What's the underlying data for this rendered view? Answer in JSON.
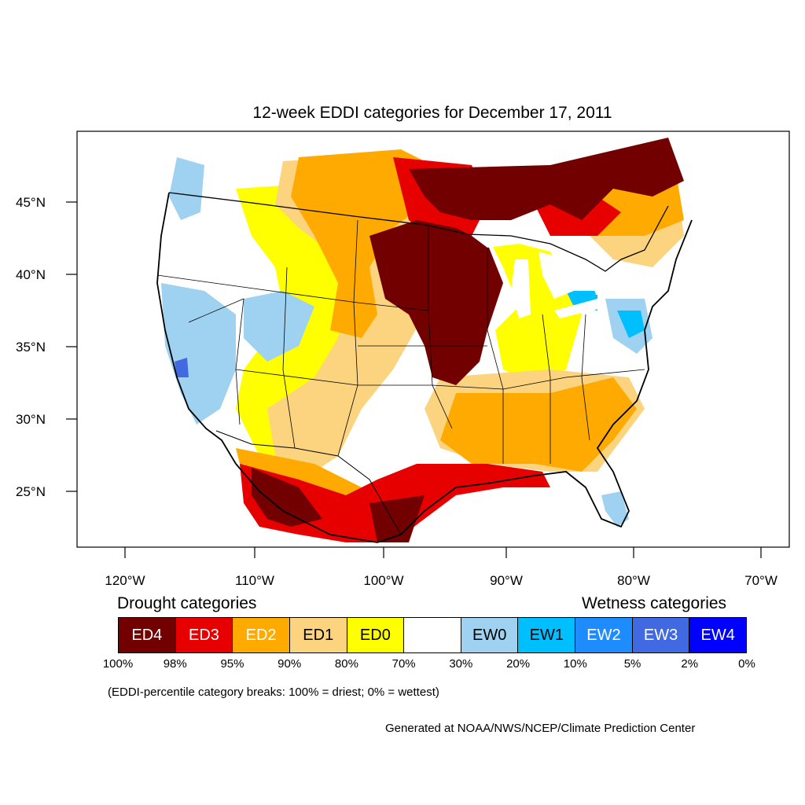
{
  "title": "12-week EDDI categories for December 17, 2011",
  "map": {
    "lat_labels": [
      "45°N",
      "40°N",
      "35°N",
      "30°N",
      "25°N"
    ],
    "lon_labels": [
      "120°W",
      "110°W",
      "100°W",
      "90°W",
      "80°W",
      "70°W"
    ]
  },
  "legend": {
    "drought_heading": "Drought categories",
    "wetness_heading": "Wetness categories",
    "categories": [
      {
        "label": "ED4",
        "color": "#730000",
        "text_color": "#ffffff"
      },
      {
        "label": "ED3",
        "color": "#e60000",
        "text_color": "#ffffff"
      },
      {
        "label": "ED2",
        "color": "#ffaa00",
        "text_color": "#ffffff"
      },
      {
        "label": "ED1",
        "color": "#fcd37f",
        "text_color": "#000000"
      },
      {
        "label": "ED0",
        "color": "#ffff00",
        "text_color": "#000000"
      },
      {
        "label": "",
        "color": "#ffffff",
        "text_color": "#000000"
      },
      {
        "label": "EW0",
        "color": "#9ed2f0",
        "text_color": "#000000"
      },
      {
        "label": "EW1",
        "color": "#00bfff",
        "text_color": "#000000"
      },
      {
        "label": "EW2",
        "color": "#1e8cff",
        "text_color": "#ffffff"
      },
      {
        "label": "EW3",
        "color": "#4169e1",
        "text_color": "#ffffff"
      },
      {
        "label": "EW4",
        "color": "#0000ff",
        "text_color": "#ffffff"
      }
    ],
    "breaks": [
      "100%",
      "98%",
      "95%",
      "90%",
      "80%",
      "70%",
      "30%",
      "20%",
      "10%",
      "5%",
      "2%",
      "0%"
    ]
  },
  "note": "(EDDI-percentile category breaks: 100% = driest; 0% = wettest)",
  "credit": "Generated at NOAA/NWS/NCEP/Climate Prediction Center"
}
